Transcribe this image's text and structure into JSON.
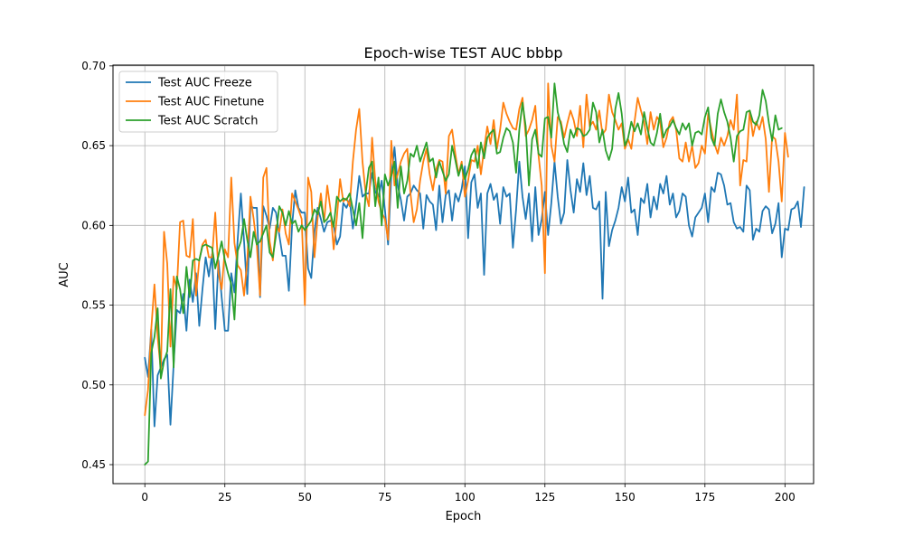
{
  "chart_data": {
    "type": "line",
    "title": "Epoch-wise TEST AUC bbbp",
    "xlabel": "Epoch",
    "ylabel": "AUC",
    "xlim": [
      -9.95,
      208.95
    ],
    "ylim": [
      0.4381,
      0.7005
    ],
    "xticks": [
      0,
      25,
      50,
      75,
      100,
      125,
      150,
      175,
      200
    ],
    "yticks": [
      0.45,
      0.5,
      0.55,
      0.6,
      0.65,
      0.7
    ],
    "xtick_labels": [
      "0",
      "25",
      "50",
      "75",
      "100",
      "125",
      "150",
      "175",
      "200"
    ],
    "ytick_labels": [
      "0.45",
      "0.50",
      "0.55",
      "0.60",
      "0.65",
      "0.70"
    ],
    "grid": true,
    "legend_position": "upper-left",
    "x": {
      "start": 0,
      "end": 199,
      "step": 1
    },
    "series": [
      {
        "name": "Test AUC Freeze",
        "color": "#1f77b4",
        "values": [
          0.517,
          0.505,
          0.535,
          0.474,
          0.506,
          0.511,
          0.516,
          0.519,
          0.475,
          0.513,
          0.547,
          0.545,
          0.557,
          0.534,
          0.566,
          0.552,
          0.57,
          0.537,
          0.56,
          0.58,
          0.568,
          0.582,
          0.535,
          0.578,
          0.555,
          0.534,
          0.534,
          0.57,
          0.558,
          0.591,
          0.62,
          0.59,
          0.557,
          0.612,
          0.611,
          0.611,
          0.555,
          0.612,
          0.606,
          0.598,
          0.611,
          0.608,
          0.594,
          0.581,
          0.581,
          0.559,
          0.6,
          0.622,
          0.611,
          0.608,
          0.608,
          0.573,
          0.567,
          0.596,
          0.611,
          0.604,
          0.596,
          0.602,
          0.603,
          0.6,
          0.588,
          0.593,
          0.614,
          0.611,
          0.616,
          0.598,
          0.613,
          0.631,
          0.618,
          0.62,
          0.62,
          0.633,
          0.621,
          0.618,
          0.628,
          0.61,
          0.588,
          0.631,
          0.649,
          0.625,
          0.616,
          0.603,
          0.618,
          0.62,
          0.625,
          0.622,
          0.62,
          0.598,
          0.619,
          0.615,
          0.613,
          0.597,
          0.625,
          0.602,
          0.619,
          0.622,
          0.603,
          0.62,
          0.615,
          0.623,
          0.637,
          0.592,
          0.627,
          0.632,
          0.611,
          0.62,
          0.569,
          0.62,
          0.626,
          0.616,
          0.62,
          0.601,
          0.624,
          0.618,
          0.62,
          0.586,
          0.61,
          0.64,
          0.618,
          0.604,
          0.62,
          0.59,
          0.624,
          0.594,
          0.604,
          0.621,
          0.594,
          0.614,
          0.64,
          0.618,
          0.601,
          0.608,
          0.641,
          0.622,
          0.608,
          0.629,
          0.621,
          0.639,
          0.619,
          0.631,
          0.611,
          0.61,
          0.615,
          0.554,
          0.621,
          0.587,
          0.597,
          0.603,
          0.611,
          0.624,
          0.615,
          0.63,
          0.608,
          0.61,
          0.594,
          0.617,
          0.614,
          0.626,
          0.605,
          0.618,
          0.61,
          0.626,
          0.62,
          0.631,
          0.613,
          0.62,
          0.605,
          0.609,
          0.62,
          0.618,
          0.6,
          0.593,
          0.605,
          0.608,
          0.611,
          0.62,
          0.602,
          0.624,
          0.621,
          0.633,
          0.632,
          0.625,
          0.613,
          0.614,
          0.602,
          0.598,
          0.599,
          0.596,
          0.625,
          0.622,
          0.591,
          0.598,
          0.596,
          0.609,
          0.612,
          0.61,
          0.595,
          0.601,
          0.614,
          0.58,
          0.598,
          0.597,
          0.61,
          0.611,
          0.615,
          0.599,
          0.624
        ]
      },
      {
        "name": "Test AUC Finetune",
        "color": "#ff7f0e",
        "values": [
          0.481,
          0.497,
          0.535,
          0.563,
          0.53,
          0.509,
          0.596,
          0.576,
          0.524,
          0.568,
          0.56,
          0.602,
          0.603,
          0.581,
          0.58,
          0.604,
          0.556,
          0.578,
          0.588,
          0.591,
          0.58,
          0.58,
          0.608,
          0.57,
          0.56,
          0.585,
          0.58,
          0.63,
          0.589,
          0.575,
          0.572,
          0.556,
          0.578,
          0.618,
          0.604,
          0.587,
          0.556,
          0.63,
          0.636,
          0.59,
          0.578,
          0.6,
          0.596,
          0.61,
          0.595,
          0.588,
          0.62,
          0.615,
          0.61,
          0.604,
          0.55,
          0.63,
          0.621,
          0.58,
          0.605,
          0.62,
          0.602,
          0.625,
          0.61,
          0.585,
          0.605,
          0.629,
          0.615,
          0.617,
          0.612,
          0.64,
          0.66,
          0.673,
          0.64,
          0.62,
          0.612,
          0.655,
          0.628,
          0.615,
          0.608,
          0.604,
          0.591,
          0.653,
          0.625,
          0.632,
          0.64,
          0.645,
          0.648,
          0.62,
          0.602,
          0.61,
          0.628,
          0.64,
          0.648,
          0.632,
          0.622,
          0.635,
          0.641,
          0.64,
          0.62,
          0.656,
          0.66,
          0.645,
          0.632,
          0.64,
          0.618,
          0.628,
          0.641,
          0.64,
          0.65,
          0.632,
          0.648,
          0.662,
          0.651,
          0.666,
          0.648,
          0.66,
          0.677,
          0.67,
          0.665,
          0.661,
          0.66,
          0.673,
          0.68,
          0.656,
          0.66,
          0.666,
          0.675,
          0.644,
          0.625,
          0.57,
          0.689,
          0.65,
          0.64,
          0.668,
          0.665,
          0.655,
          0.664,
          0.672,
          0.666,
          0.656,
          0.675,
          0.649,
          0.682,
          0.662,
          0.665,
          0.66,
          0.672,
          0.657,
          0.66,
          0.682,
          0.671,
          0.666,
          0.66,
          0.664,
          0.648,
          0.654,
          0.648,
          0.665,
          0.68,
          0.672,
          0.665,
          0.651,
          0.671,
          0.66,
          0.668,
          0.665,
          0.649,
          0.655,
          0.665,
          0.668,
          0.66,
          0.642,
          0.64,
          0.652,
          0.64,
          0.65,
          0.636,
          0.639,
          0.65,
          0.645,
          0.67,
          0.66,
          0.651,
          0.645,
          0.655,
          0.65,
          0.656,
          0.666,
          0.66,
          0.682,
          0.625,
          0.641,
          0.64,
          0.672,
          0.656,
          0.665,
          0.66,
          0.668,
          0.654,
          0.621,
          0.656,
          0.654,
          0.64,
          0.615,
          0.658,
          0.643
        ]
      },
      {
        "name": "Test AUC Scratch",
        "color": "#2ca02c",
        "values": [
          0.45,
          0.452,
          0.52,
          0.53,
          0.548,
          0.504,
          0.515,
          0.521,
          0.56,
          0.511,
          0.568,
          0.56,
          0.545,
          0.574,
          0.555,
          0.578,
          0.579,
          0.578,
          0.587,
          0.588,
          0.587,
          0.586,
          0.573,
          0.581,
          0.59,
          0.578,
          0.57,
          0.563,
          0.541,
          0.584,
          0.59,
          0.604,
          0.591,
          0.58,
          0.596,
          0.588,
          0.59,
          0.595,
          0.6,
          0.583,
          0.58,
          0.594,
          0.612,
          0.608,
          0.6,
          0.609,
          0.601,
          0.603,
          0.596,
          0.6,
          0.597,
          0.6,
          0.603,
          0.61,
          0.607,
          0.615,
          0.602,
          0.604,
          0.608,
          0.599,
          0.618,
          0.615,
          0.617,
          0.616,
          0.62,
          0.61,
          0.6,
          0.614,
          0.592,
          0.62,
          0.636,
          0.64,
          0.612,
          0.63,
          0.6,
          0.632,
          0.625,
          0.631,
          0.64,
          0.611,
          0.637,
          0.62,
          0.628,
          0.645,
          0.643,
          0.65,
          0.64,
          0.646,
          0.652,
          0.64,
          0.642,
          0.63,
          0.64,
          0.634,
          0.628,
          0.632,
          0.65,
          0.641,
          0.631,
          0.638,
          0.629,
          0.635,
          0.644,
          0.648,
          0.636,
          0.652,
          0.642,
          0.655,
          0.658,
          0.66,
          0.645,
          0.646,
          0.655,
          0.661,
          0.659,
          0.652,
          0.633,
          0.66,
          0.677,
          0.662,
          0.625,
          0.654,
          0.66,
          0.645,
          0.643,
          0.667,
          0.668,
          0.655,
          0.689,
          0.671,
          0.663,
          0.651,
          0.646,
          0.66,
          0.655,
          0.661,
          0.66,
          0.656,
          0.657,
          0.66,
          0.677,
          0.671,
          0.652,
          0.66,
          0.647,
          0.641,
          0.648,
          0.673,
          0.683,
          0.67,
          0.65,
          0.655,
          0.665,
          0.659,
          0.664,
          0.657,
          0.671,
          0.661,
          0.652,
          0.65,
          0.658,
          0.67,
          0.655,
          0.66,
          0.662,
          0.666,
          0.661,
          0.657,
          0.664,
          0.66,
          0.664,
          0.65,
          0.658,
          0.659,
          0.657,
          0.668,
          0.674,
          0.655,
          0.65,
          0.67,
          0.679,
          0.671,
          0.665,
          0.655,
          0.64,
          0.656,
          0.659,
          0.66,
          0.671,
          0.672,
          0.665,
          0.663,
          0.669,
          0.685,
          0.678,
          0.664,
          0.653,
          0.669,
          0.66,
          0.661
        ]
      }
    ]
  }
}
